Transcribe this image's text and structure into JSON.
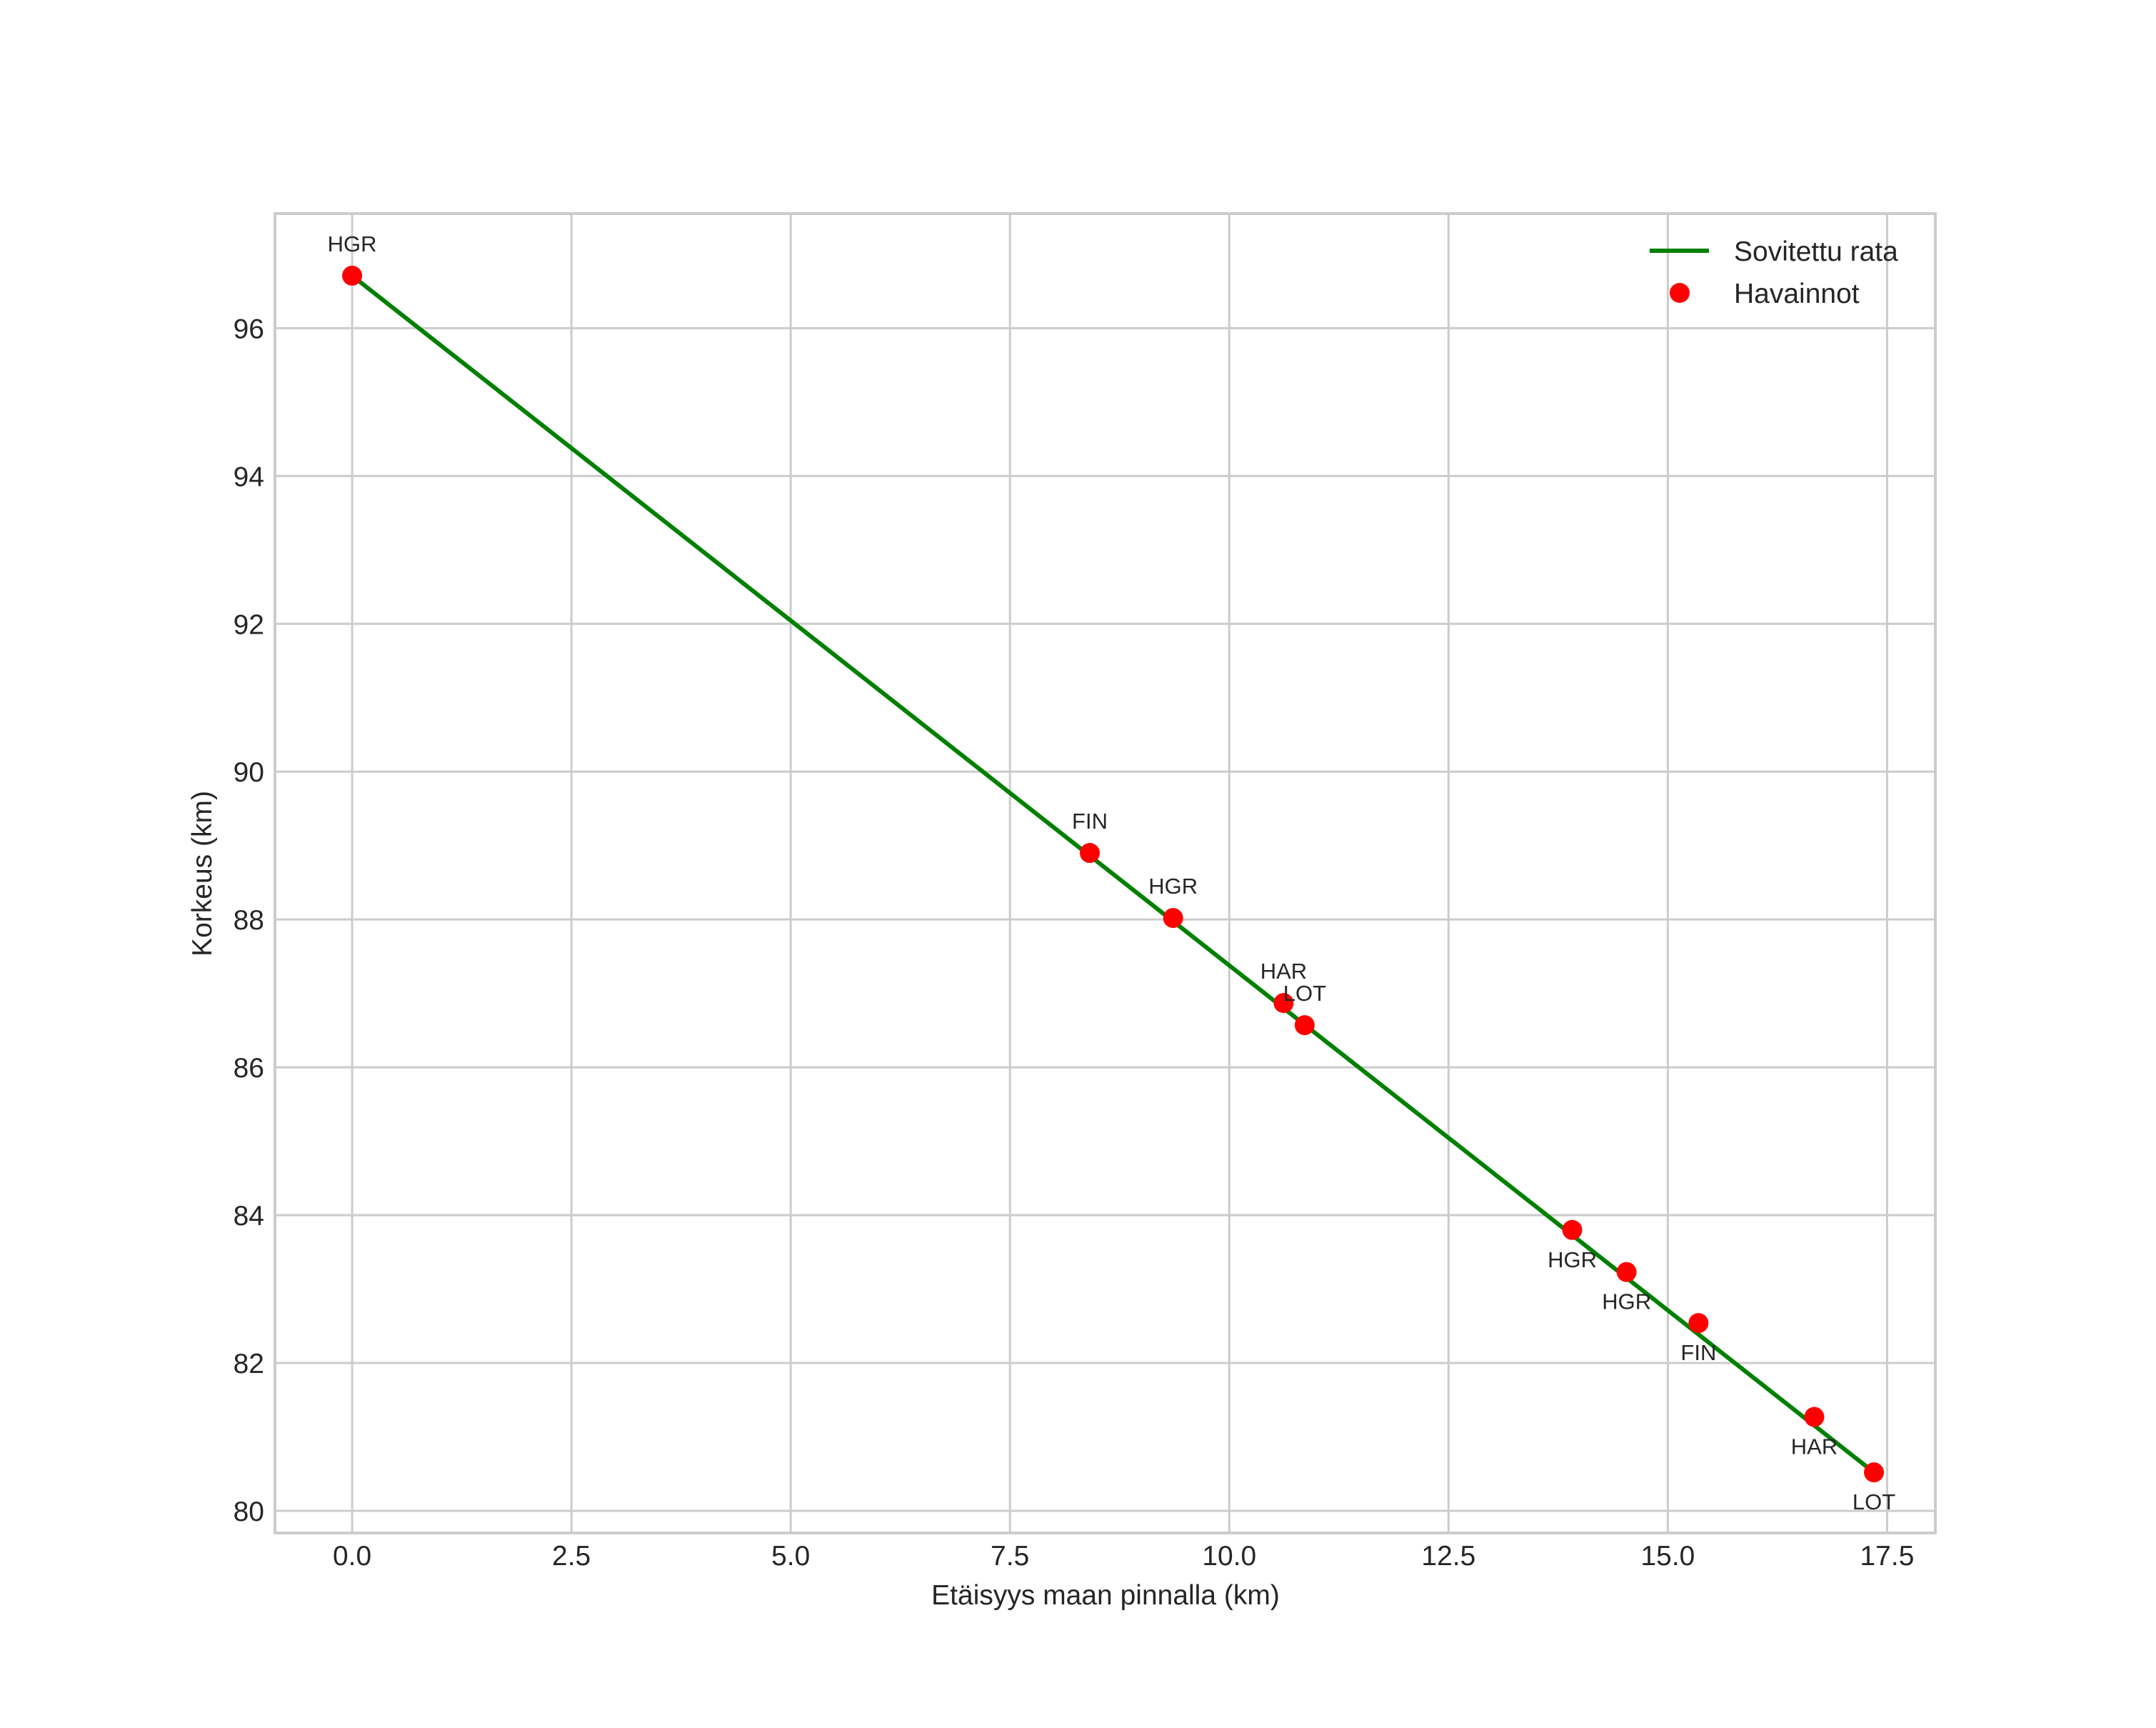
{
  "chart_data": {
    "type": "line",
    "title": "",
    "xlabel": "Etäisyys maan pinnalla (km)",
    "ylabel": "Korkeus (km)",
    "xlim": [
      -0.88,
      18.05
    ],
    "ylim": [
      79.7,
      97.55
    ],
    "xticks": [
      0.0,
      2.5,
      5.0,
      7.5,
      10.0,
      12.5,
      15.0,
      17.5
    ],
    "xtick_labels": [
      "0.0",
      "2.5",
      "5.0",
      "7.5",
      "10.0",
      "12.5",
      "15.0",
      "17.5"
    ],
    "yticks": [
      80,
      82,
      84,
      86,
      88,
      90,
      92,
      94,
      96
    ],
    "ytick_labels": [
      "80",
      "82",
      "84",
      "86",
      "88",
      "90",
      "92",
      "94",
      "96"
    ],
    "grid": true,
    "legend_position": "upper right",
    "series": [
      {
        "name": "Sovitettu rata",
        "kind": "line",
        "color": "#008000",
        "x": [
          0.0,
          17.35
        ],
        "y": [
          96.71,
          80.52
        ]
      },
      {
        "name": "Havainnot",
        "kind": "scatter",
        "color": "#ff0000",
        "points": [
          {
            "x": 0.0,
            "y": 96.71,
            "label": "HGR",
            "label_pos": "above"
          },
          {
            "x": 8.41,
            "y": 88.9,
            "label": "FIN",
            "label_pos": "above"
          },
          {
            "x": 9.36,
            "y": 88.02,
            "label": "HGR",
            "label_pos": "above"
          },
          {
            "x": 10.62,
            "y": 86.87,
            "label": "HAR",
            "label_pos": "above"
          },
          {
            "x": 10.86,
            "y": 86.57,
            "label": "LOT",
            "label_pos": "above"
          },
          {
            "x": 13.91,
            "y": 83.8,
            "label": "HGR",
            "label_pos": "below"
          },
          {
            "x": 14.53,
            "y": 83.23,
            "label": "HGR",
            "label_pos": "below"
          },
          {
            "x": 15.35,
            "y": 82.54,
            "label": "FIN",
            "label_pos": "below"
          },
          {
            "x": 16.67,
            "y": 81.27,
            "label": "HAR",
            "label_pos": "below"
          },
          {
            "x": 17.35,
            "y": 80.52,
            "label": "LOT",
            "label_pos": "below"
          }
        ]
      }
    ],
    "legend": [
      {
        "label": "Sovitettu rata",
        "symbol": "line",
        "color": "#008000"
      },
      {
        "label": "Havainnot",
        "symbol": "dot",
        "color": "#ff0000"
      }
    ]
  },
  "colors": {
    "grid": "#cccccc",
    "text": "#262626",
    "fit_line": "#008000",
    "observation": "#ff0000"
  }
}
